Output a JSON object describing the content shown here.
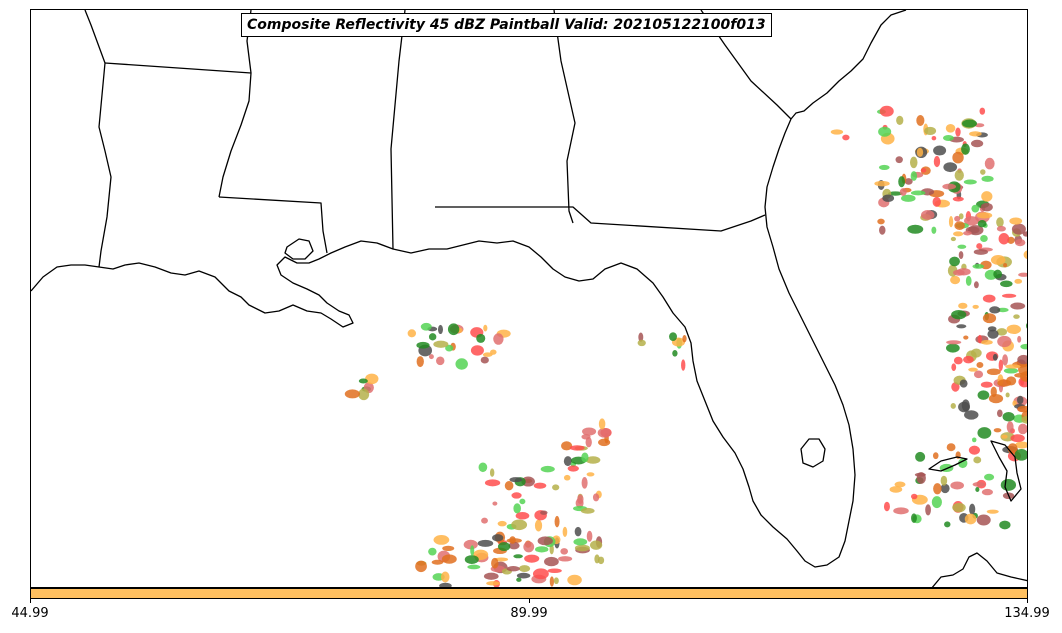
{
  "title": "Composite Reflectivity 45 dBZ Paintball Valid: 202105122100f013",
  "colorbar": {
    "fill_color": "#ffc060",
    "ticks": [
      "44.99",
      "89.99",
      "134.99"
    ]
  },
  "map": {
    "region": "Southeastern United States and Gulf of Mexico",
    "features": [
      "state-borders",
      "coastline"
    ],
    "paintball_colors": [
      "#ff4d4d",
      "#ffb347",
      "#55d455",
      "#a65555",
      "#4d4d4d",
      "#b5b04a",
      "#e07020",
      "#228b22",
      "#e07070"
    ]
  }
}
